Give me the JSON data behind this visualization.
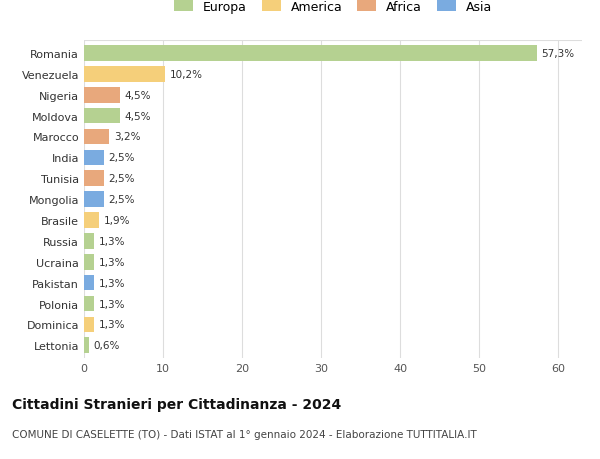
{
  "countries": [
    "Romania",
    "Venezuela",
    "Nigeria",
    "Moldova",
    "Marocco",
    "India",
    "Tunisia",
    "Mongolia",
    "Brasile",
    "Russia",
    "Ucraina",
    "Pakistan",
    "Polonia",
    "Dominica",
    "Lettonia"
  ],
  "values": [
    57.3,
    10.2,
    4.5,
    4.5,
    3.2,
    2.5,
    2.5,
    2.5,
    1.9,
    1.3,
    1.3,
    1.3,
    1.3,
    1.3,
    0.6
  ],
  "labels": [
    "57,3%",
    "10,2%",
    "4,5%",
    "4,5%",
    "3,2%",
    "2,5%",
    "2,5%",
    "2,5%",
    "1,9%",
    "1,3%",
    "1,3%",
    "1,3%",
    "1,3%",
    "1,3%",
    "0,6%"
  ],
  "continents": [
    "Europa",
    "America",
    "Africa",
    "Europa",
    "Africa",
    "Asia",
    "Africa",
    "Asia",
    "America",
    "Europa",
    "Europa",
    "Asia",
    "Europa",
    "America",
    "Europa"
  ],
  "continent_colors": {
    "Europa": "#b5d191",
    "America": "#f5cf7a",
    "Africa": "#e8a87c",
    "Asia": "#7aabe0"
  },
  "legend_order": [
    "Europa",
    "America",
    "Africa",
    "Asia"
  ],
  "title": "Cittadini Stranieri per Cittadinanza - 2024",
  "subtitle": "COMUNE DI CASELETTE (TO) - Dati ISTAT al 1° gennaio 2024 - Elaborazione TUTTITALIA.IT",
  "xlim": [
    0,
    63
  ],
  "xticks": [
    0,
    10,
    20,
    30,
    40,
    50,
    60
  ],
  "background_color": "#ffffff",
  "grid_color": "#dddddd",
  "bar_height": 0.75
}
